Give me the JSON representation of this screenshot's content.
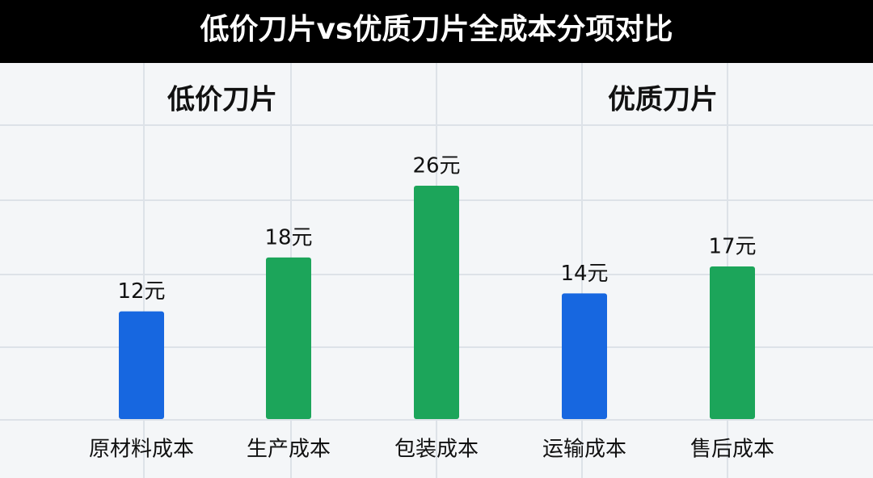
{
  "chart_data": {
    "type": "bar",
    "title": "低价刀片vs优质刀片全成本分项对比",
    "annotations": [
      "低价刀片",
      "优质刀片"
    ],
    "categories": [
      "原材料成本",
      "生产成本",
      "包装成本",
      "运输成本",
      "售后成本"
    ],
    "values": [
      12,
      18,
      26,
      14,
      17
    ],
    "value_labels": [
      "12元",
      "18元",
      "26元",
      "14元",
      "17元"
    ],
    "colors": [
      "#1767e0",
      "#1ca55a",
      "#1ca55a",
      "#1767e0",
      "#1ca55a"
    ]
  }
}
